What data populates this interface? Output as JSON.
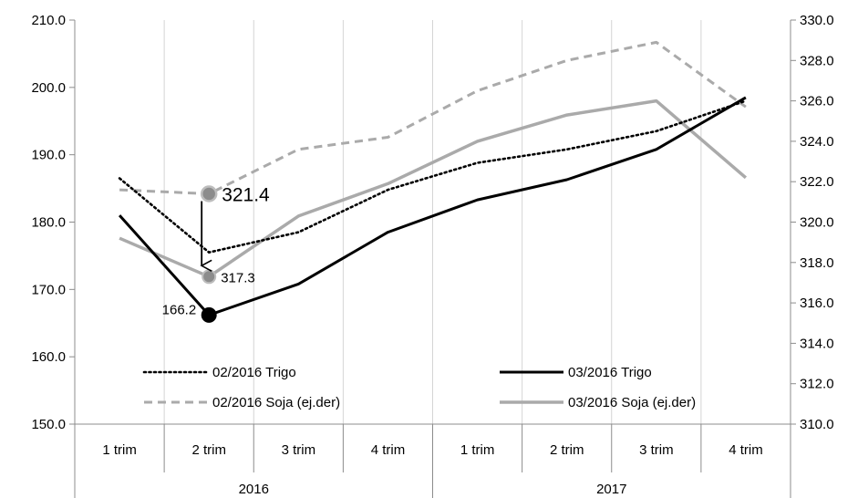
{
  "chart_data": {
    "type": "line",
    "categories": [
      "1 trim",
      "2 trim",
      "3 trim",
      "4 trim",
      "1 trim",
      "2 trim",
      "3 trim",
      "4 trim"
    ],
    "category_groups": [
      {
        "label": "2016",
        "span": 4
      },
      {
        "label": "2017",
        "span": 4
      }
    ],
    "y_left": {
      "min": 150,
      "max": 210,
      "ticks": [
        "150.0",
        "160.0",
        "170.0",
        "180.0",
        "190.0",
        "200.0",
        "210.0"
      ]
    },
    "y_right": {
      "min": 310,
      "max": 330,
      "ticks": [
        "310.0",
        "312.0",
        "314.0",
        "316.0",
        "318.0",
        "320.0",
        "322.0",
        "324.0",
        "326.0",
        "328.0",
        "330.0"
      ]
    },
    "series": [
      {
        "name": "02/2016 Trigo",
        "axis": "left",
        "style": "dotted",
        "color": "#000000",
        "values": [
          186.5,
          175.5,
          178.5,
          184.8,
          188.8,
          190.8,
          193.5,
          198.0
        ]
      },
      {
        "name": "03/2016 Trigo",
        "axis": "left",
        "style": "solid",
        "color": "#000000",
        "values": [
          181.0,
          166.2,
          170.8,
          178.5,
          183.3,
          186.3,
          190.8,
          198.5
        ]
      },
      {
        "name": "02/2016 Soja (ej.der)",
        "axis": "right",
        "style": "dashed",
        "color": "#aaaaaa",
        "values": [
          321.6,
          321.4,
          323.6,
          324.2,
          326.5,
          328.0,
          328.9,
          325.7
        ]
      },
      {
        "name": "03/2016 Soja (ej.der)",
        "axis": "right",
        "style": "solid",
        "color": "#aaaaaa",
        "values": [
          319.2,
          317.3,
          320.3,
          321.9,
          324.0,
          325.3,
          326.0,
          322.2
        ]
      }
    ],
    "annotations": [
      {
        "text": "321.4",
        "series": 2,
        "index": 1
      },
      {
        "text": "317.3",
        "series": 3,
        "index": 1
      },
      {
        "text": "166.2",
        "series": 1,
        "index": 1
      }
    ],
    "grid": "vertical",
    "legend": "bottom-inside"
  }
}
